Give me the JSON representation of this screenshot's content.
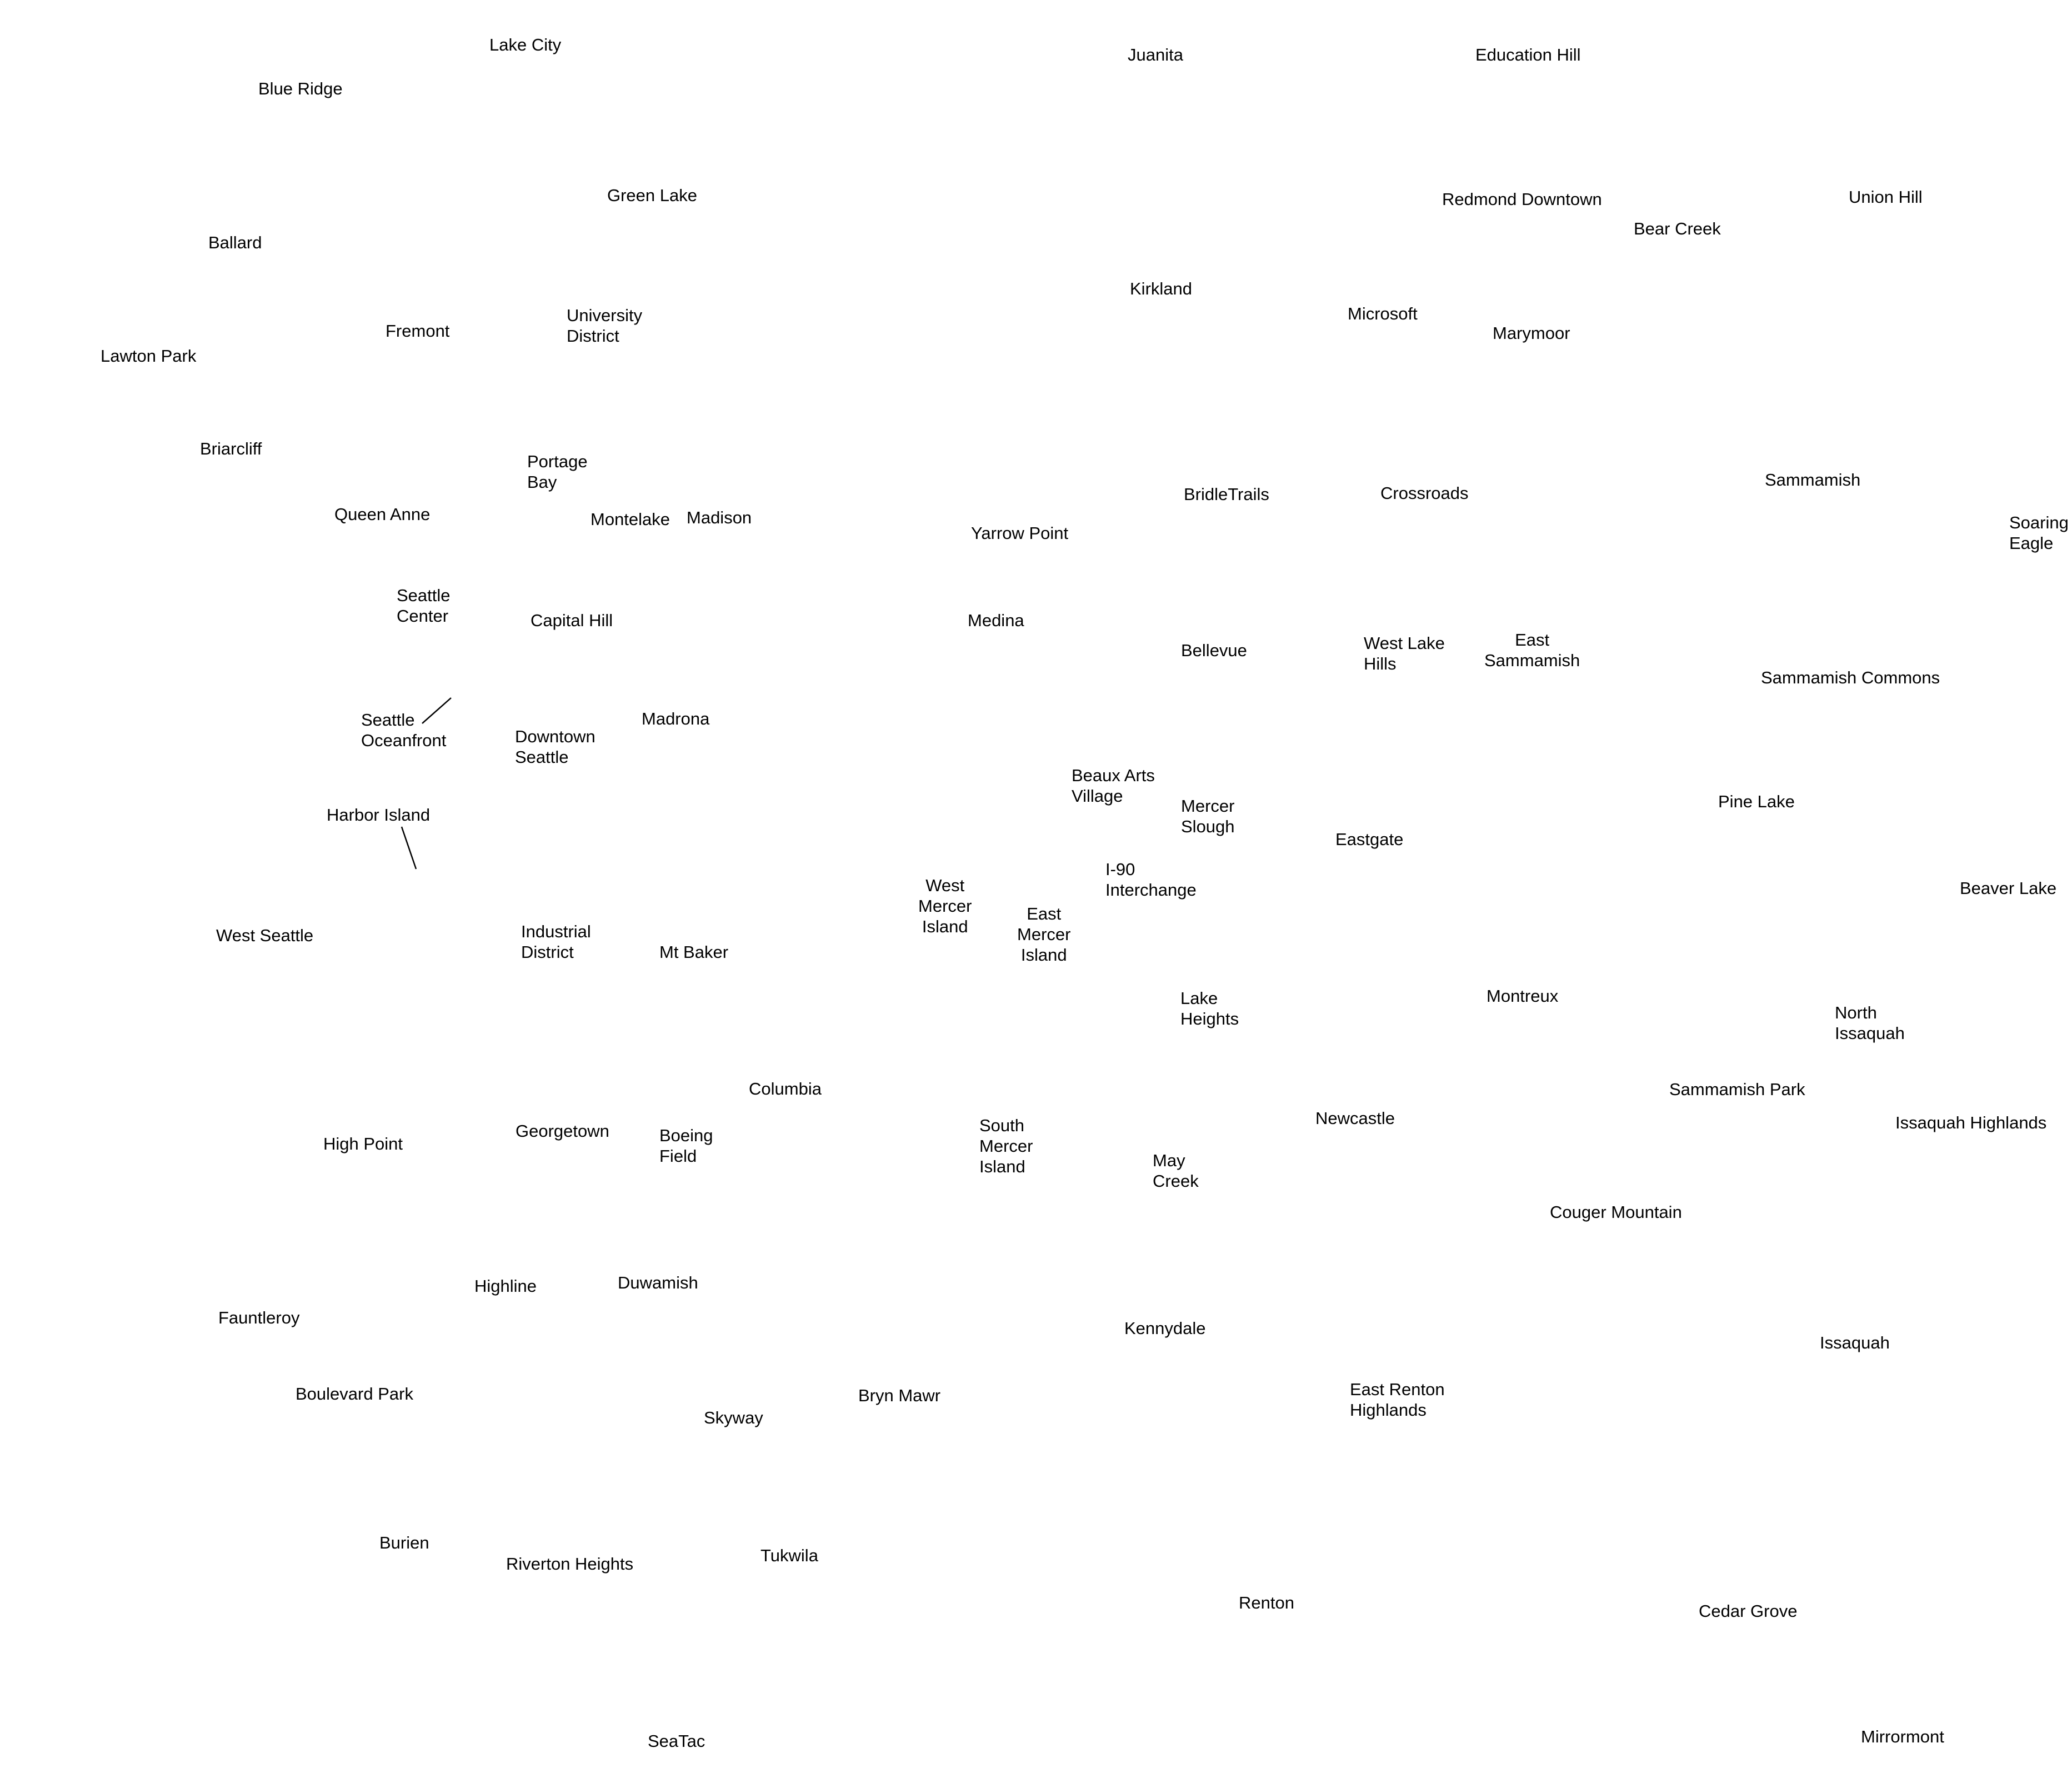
{
  "map": {
    "labels": {
      "lake_city": "Lake City",
      "blue_ridge": "Blue Ridge",
      "juanita": "Juanita",
      "education_hill": "Education Hill",
      "green_lake": "Green Lake",
      "redmond_downtown": "Redmond Downtown",
      "union_hill": "Union Hill",
      "bear_creek": "Bear Creek",
      "ballard": "Ballard",
      "kirkland": "Kirkland",
      "fremont": "Fremont",
      "university_district_1": "University",
      "university_district_2": "District",
      "microsoft": "Microsoft",
      "marymoor": "Marymoor",
      "lawton_park": "Lawton Park",
      "briarcliff": "Briarcliff",
      "portage_bay_1": "Portage",
      "portage_bay_2": "Bay",
      "sammamish": "Sammamish",
      "bridle_trails": "BridleTrails",
      "crossroads": "Crossroads",
      "queen_anne": "Queen Anne",
      "montelake": "Montelake",
      "madison": "Madison",
      "yarrow_point": "Yarrow Point",
      "soaring_eagle_1": "Soaring",
      "soaring_eagle_2": "Eagle",
      "seattle_center_1": "Seattle",
      "seattle_center_2": "Center",
      "capital_hill": "Capital Hill",
      "medina": "Medina",
      "east_sammamish_1": "East",
      "east_sammamish_2": "Sammamish",
      "west_lake_hills_1": "West Lake",
      "west_lake_hills_2": "Hills",
      "bellevue": "Bellevue",
      "sammamish_commons": "Sammamish Commons",
      "madrona": "Madrona",
      "seattle_oceanfront_1": "Seattle",
      "seattle_oceanfront_2": "Oceanfront",
      "downtown_seattle_1": "Downtown",
      "downtown_seattle_2": "Seattle",
      "beaux_arts_1": "Beaux Arts",
      "beaux_arts_2": "Village",
      "pine_lake": "Pine Lake",
      "mercer_slough_1": "Mercer",
      "mercer_slough_2": "Slough",
      "harbor_island": "Harbor Island",
      "eastgate": "Eastgate",
      "i90_1": "I-90",
      "i90_2": "Interchange",
      "west_mercer_1": "West",
      "west_mercer_2": "Mercer",
      "west_mercer_3": "Island",
      "beaver_lake": "Beaver Lake",
      "east_mercer_1": "East",
      "east_mercer_2": "Mercer",
      "east_mercer_3": "Island",
      "west_seattle": "West Seattle",
      "industrial_district_1": "Industrial",
      "industrial_district_2": "District",
      "mt_baker": "Mt Baker",
      "lake_heights_1": "Lake",
      "lake_heights_2": "Heights",
      "montreux": "Montreux",
      "north_issaquah_1": "North",
      "north_issaquah_2": "Issaquah",
      "columbia": "Columbia",
      "sammamish_park": "Sammamish Park",
      "newcastle": "Newcastle",
      "issaquah_highlands": "Issaquah Highlands",
      "south_mercer_1": "South",
      "south_mercer_2": "Mercer",
      "south_mercer_3": "Island",
      "high_point": "High Point",
      "georgetown": "Georgetown",
      "boeing_field_1": "Boeing",
      "boeing_field_2": "Field",
      "may_creek_1": "May",
      "may_creek_2": "Creek",
      "couger_mountain": "Couger Mountain",
      "highline": "Highline",
      "duwamish": "Duwamish",
      "fauntleroy": "Fauntleroy",
      "kennydale": "Kennydale",
      "issaquah": "Issaquah",
      "east_renton_1": "East Renton",
      "east_renton_2": "Highlands",
      "boulevard_park": "Boulevard Park",
      "bryn_mawr": "Bryn Mawr",
      "skyway": "Skyway",
      "burien": "Burien",
      "riverton_heights": "Riverton Heights",
      "tukwila": "Tukwila",
      "renton": "Renton",
      "cedar_grove": "Cedar Grove",
      "seatac": "SeaTac",
      "mirrormont": "Mirrormont"
    }
  }
}
